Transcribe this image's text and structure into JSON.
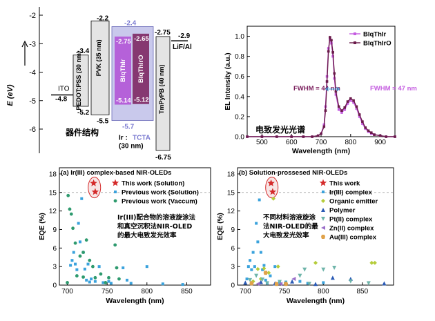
{
  "chart_data": [
    {
      "type": "energy-level-diagram",
      "ylabel": "E (eV)",
      "ylim": [
        -6.9,
        -1.9
      ],
      "yticks": [
        "-2",
        "-3",
        "-4",
        "-5",
        "-6"
      ],
      "cn_label": "器件结构",
      "layers": [
        {
          "name": "ITO",
          "lumo": null,
          "homo": -4.8,
          "homo_label": "-4.8",
          "lumo_label": "",
          "color": "#ffffff"
        },
        {
          "name": "PEDOT:PSS (30 nm)",
          "lumo": -3.4,
          "homo": -5.2,
          "lumo_label": "-3.4",
          "homo_label": "-5.2",
          "color": "#e4e4e4"
        },
        {
          "name": "PVK (35 nm)",
          "lumo": -2.2,
          "homo": -5.5,
          "lumo_label": "-2.2",
          "homo_label": "-5.5",
          "color": "#e4e4e4"
        },
        {
          "name": "Ir :TCTA (30 nm)",
          "lumo": -2.4,
          "homo": -5.7,
          "lumo_label": "-2.4",
          "homo_label": "-5.7",
          "color": "#c9c9ec"
        },
        {
          "name": "TmPyPB (40 nm)",
          "lumo": -2.75,
          "homo": -6.75,
          "lumo_label": "-2.75",
          "homo_label": "-6.75",
          "color": "#e4e4e4"
        },
        {
          "name": "LiF/Al",
          "lumo": -2.9,
          "homo": null,
          "lumo_label": "-2.9",
          "homo_label": "",
          "color": "#ffffff"
        }
      ],
      "emitters": [
        {
          "name": "BIqThIr",
          "lumo": -2.75,
          "homo": -5.14,
          "lumo_label": "-2.75",
          "homo_label": "-5.14",
          "color": "#b24fd6"
        },
        {
          "name": "BIqThIrO",
          "lumo": -2.65,
          "homo": -5.12,
          "lumo_label": "-2.65",
          "homo_label": "-5.12",
          "color": "#7a1e5c"
        }
      ],
      "ir_prefix": "Ir :",
      "host_name": "TCTA",
      "thickness": "(30 nm)"
    },
    {
      "type": "line",
      "xlabel": "Wavelength (nm)",
      "ylabel": "EL Intensity (a.u.)",
      "xlim": [
        450,
        950
      ],
      "ylim": [
        0.0,
        1.1
      ],
      "xticks": [
        500,
        600,
        700,
        800,
        900
      ],
      "yticks": [
        "0.0",
        "0.2",
        "0.4",
        "0.6",
        "0.8",
        "1.0"
      ],
      "cn_label": "电致发光光谱",
      "legend_position": "top-right",
      "annotations": [
        "FWHM = 44 nm",
        "FWHM = 47 nm"
      ],
      "series": [
        {
          "name": "BIqThIr",
          "color": "#c45ce0",
          "x": [
            450,
            500,
            550,
            600,
            640,
            670,
            690,
            700,
            710,
            715,
            720,
            725,
            730,
            735,
            740,
            745,
            750,
            760,
            770,
            780,
            790,
            800,
            810,
            820,
            830,
            840,
            850,
            860,
            870,
            880,
            900,
            920,
            950
          ],
          "y": [
            0,
            0,
            0,
            0,
            0,
            0,
            0.01,
            0.03,
            0.12,
            0.3,
            0.6,
            0.88,
            0.97,
            0.93,
            0.8,
            0.58,
            0.42,
            0.27,
            0.24,
            0.27,
            0.33,
            0.36,
            0.34,
            0.28,
            0.2,
            0.13,
            0.08,
            0.05,
            0.03,
            0.02,
            0.01,
            0,
            0
          ]
        },
        {
          "name": "BIqThIrO",
          "color": "#6a1a4a",
          "x": [
            450,
            500,
            550,
            600,
            640,
            670,
            690,
            700,
            710,
            715,
            720,
            725,
            730,
            735,
            740,
            745,
            750,
            760,
            770,
            780,
            790,
            800,
            810,
            820,
            830,
            840,
            850,
            860,
            870,
            880,
            900,
            920,
            950
          ],
          "y": [
            0,
            0,
            0,
            0,
            0,
            0,
            0.01,
            0.03,
            0.1,
            0.26,
            0.55,
            0.85,
            0.99,
            0.96,
            0.84,
            0.63,
            0.45,
            0.3,
            0.26,
            0.29,
            0.35,
            0.38,
            0.36,
            0.3,
            0.22,
            0.15,
            0.09,
            0.06,
            0.04,
            0.02,
            0.01,
            0,
            0
          ]
        }
      ]
    },
    {
      "type": "scatter",
      "panel_title": "(a)  Ir(III) complex-based NIR-OLEDs",
      "xlabel": "Wavelength (nm)",
      "ylabel": "EQE (%)",
      "xlim": [
        690,
        880
      ],
      "ylim": [
        0,
        19
      ],
      "xticks": [
        700,
        750,
        800,
        850
      ],
      "yticks": [
        0,
        3,
        6,
        9,
        12,
        15,
        18
      ],
      "dashed_y": 15,
      "legend_position": "top-right",
      "annotation_cn": [
        "Ir(III)配合物的溶液旋涂法",
        "和真空沉积法NIR-OLED",
        "的最大电致发光效率"
      ],
      "series": [
        {
          "name": "This work (Solution)",
          "marker": "star",
          "color": "#d42a2a",
          "points": [
            [
              733,
              16.5
            ],
            [
              735,
              15.1
            ]
          ]
        },
        {
          "name": "Previous work (Solution)",
          "marker": "square",
          "color": "#3aa2dc",
          "points": [
            [
              704,
              3.2
            ],
            [
              706,
              4.0
            ],
            [
              708,
              5.3
            ],
            [
              710,
              3.4
            ],
            [
              712,
              2.5
            ],
            [
              714,
              10.0
            ],
            [
              716,
              7.0
            ],
            [
              718,
              14.0
            ],
            [
              720,
              5.3
            ],
            [
              722,
              2.6
            ],
            [
              724,
              0.8
            ],
            [
              726,
              3.4
            ],
            [
              728,
              0.5
            ],
            [
              730,
              1.0
            ],
            [
              735,
              0.6
            ],
            [
              740,
              3.0
            ],
            [
              745,
              0.4
            ],
            [
              752,
              0.6
            ],
            [
              755,
              0.3
            ],
            [
              770,
              2.8
            ],
            [
              775,
              0.8
            ],
            [
              780,
              0.3
            ],
            [
              800,
              3.0
            ],
            [
              820,
              0.2
            ],
            [
              845,
              0.1
            ]
          ]
        },
        {
          "name": "Previous work (Vaccum)",
          "marker": "circle",
          "color": "#2e9a6e",
          "points": [
            [
              701,
              14.5
            ],
            [
              703,
              12.3
            ],
            [
              705,
              11.5
            ],
            [
              707,
              9.2
            ],
            [
              710,
              6.8
            ],
            [
              716,
              4.7
            ],
            [
              720,
              5.3
            ],
            [
              724,
              7.3
            ],
            [
              728,
              4.0
            ],
            [
              732,
              3.0
            ],
            [
              735,
              1.2
            ],
            [
              742,
              1.8
            ],
            [
              748,
              0.4
            ],
            [
              752,
              1.2
            ],
            [
              760,
              6.5
            ],
            [
              762,
              2.8
            ],
            [
              765,
              1.0
            ],
            [
              700,
              0.4
            ],
            [
              720,
              1.3
            ],
            [
              712,
              1.5
            ]
          ]
        }
      ]
    },
    {
      "type": "scatter",
      "panel_title": "(b)  Solution-prossesed NIR-OLEDs",
      "xlabel": "Wavelength (nm)",
      "ylabel": "EQE (%)",
      "xlim": [
        690,
        890
      ],
      "ylim": [
        0,
        19
      ],
      "xticks": [
        700,
        750,
        800,
        850
      ],
      "yticks": [
        0,
        3,
        6,
        9,
        12,
        15,
        18
      ],
      "dashed_y": 15,
      "legend_position": "top-right",
      "annotation_cn": [
        "不同材料溶液旋涂",
        "法NIR-OLED的最",
        "大电致发光效率"
      ],
      "series": [
        {
          "name": "This work",
          "marker": "star",
          "color": "#d42a2a",
          "points": [
            [
              733,
              16.5
            ],
            [
              735,
              15.1
            ]
          ]
        },
        {
          "name": "Ir(III) complex",
          "marker": "square",
          "color": "#3aa2dc",
          "points": [
            [
              702,
              1.0
            ],
            [
              704,
              3.0
            ],
            [
              706,
              4.0
            ],
            [
              708,
              2.5
            ],
            [
              710,
              5.3
            ],
            [
              712,
              3.0
            ],
            [
              714,
              10.0
            ],
            [
              716,
              7.0
            ],
            [
              718,
              13.8
            ],
            [
              720,
              5.3
            ],
            [
              722,
              2.5
            ],
            [
              724,
              3.2
            ],
            [
              726,
              0.8
            ],
            [
              728,
              0.3
            ],
            [
              732,
              1.5
            ],
            [
              738,
              3.0
            ],
            [
              744,
              0.4
            ],
            [
              752,
              0.5
            ],
            [
              770,
              0.6
            ],
            [
              780,
              0.3
            ],
            [
              800,
              0.4
            ]
          ]
        },
        {
          "name": "Organic emitter",
          "marker": "diamond",
          "color": "#b5cc3a",
          "points": [
            [
              710,
              0.6
            ],
            [
              716,
              2.6
            ],
            [
              720,
              1.0
            ],
            [
              724,
              2.7
            ],
            [
              730,
              2.0
            ],
            [
              736,
              14.0
            ],
            [
              742,
              3.0
            ],
            [
              752,
              0.3
            ],
            [
              790,
              3.6
            ],
            [
              862,
              3.6
            ],
            [
              866,
              3.6
            ]
          ]
        },
        {
          "name": "Polymer",
          "marker": "triangle",
          "color": "#2a5ab5",
          "points": [
            [
              700,
              0.4
            ],
            [
              720,
              0.5
            ],
            [
              738,
              0.3
            ],
            [
              760,
              0.6
            ],
            [
              790,
              0.2
            ],
            [
              812,
              1.2
            ],
            [
              835,
              1.0
            ],
            [
              878,
              0.3
            ]
          ]
        },
        {
          "name": "Pt(II) complex",
          "marker": "tri-down",
          "color": "#6fb5aa",
          "points": [
            [
              706,
              0.8
            ],
            [
              714,
              1.5
            ],
            [
              722,
              0.9
            ],
            [
              728,
              0.3
            ],
            [
              744,
              0.5
            ],
            [
              770,
              1.5
            ],
            [
              776,
              2.5
            ],
            [
              782,
              0.2
            ],
            [
              800,
              2.5
            ],
            [
              814,
              2.8
            ],
            [
              835,
              0.6
            ],
            [
              858,
              0.3
            ]
          ]
        },
        {
          "name": "Zn(II) complex",
          "marker": "triangle-left",
          "color": "#9a6ec9",
          "points": [
            [
              716,
              0.2
            ],
            [
              745,
              0.2
            ],
            [
              762,
              1.0
            ]
          ]
        },
        {
          "name": "Au(III) complex",
          "marker": "hexagon",
          "color": "#e0a24a",
          "points": [
            [
              708,
              0.3
            ],
            [
              726,
              2.0
            ],
            [
              740,
              0.2
            ],
            [
              752,
              0.2
            ]
          ]
        }
      ]
    }
  ]
}
